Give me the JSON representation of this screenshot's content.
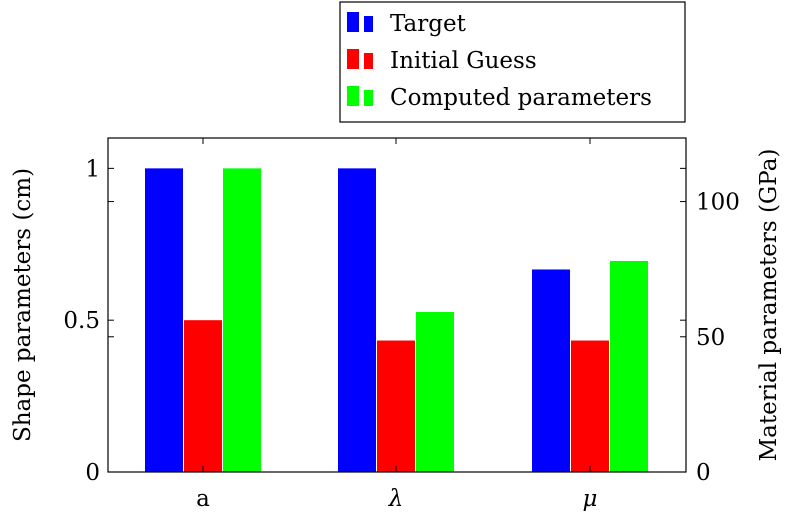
{
  "chart_data": {
    "type": "bar",
    "categories": [
      "a",
      "λ",
      "μ"
    ],
    "series": [
      {
        "name": "Target",
        "color": "#0000ff",
        "values": [
          1.0,
          1.0,
          0.667
        ]
      },
      {
        "name": "Initial Guess",
        "color": "#ff0000",
        "values": [
          0.5,
          0.433,
          0.433
        ]
      },
      {
        "name": "Computed parameters",
        "color": "#00ff00",
        "values": [
          1.0,
          0.527,
          0.695
        ]
      }
    ],
    "ylabel_left": "Shape parameters (cm)",
    "ylabel_right": "Material parameters (GPa)",
    "ylim_left": [
      0,
      1.1
    ],
    "ylim_right": [
      0,
      123.5
    ],
    "yticks_left": [
      0,
      0.5,
      1
    ],
    "yticks_right": [
      0,
      50,
      100
    ],
    "legend_position": "top-right-outside",
    "grid": false
  }
}
